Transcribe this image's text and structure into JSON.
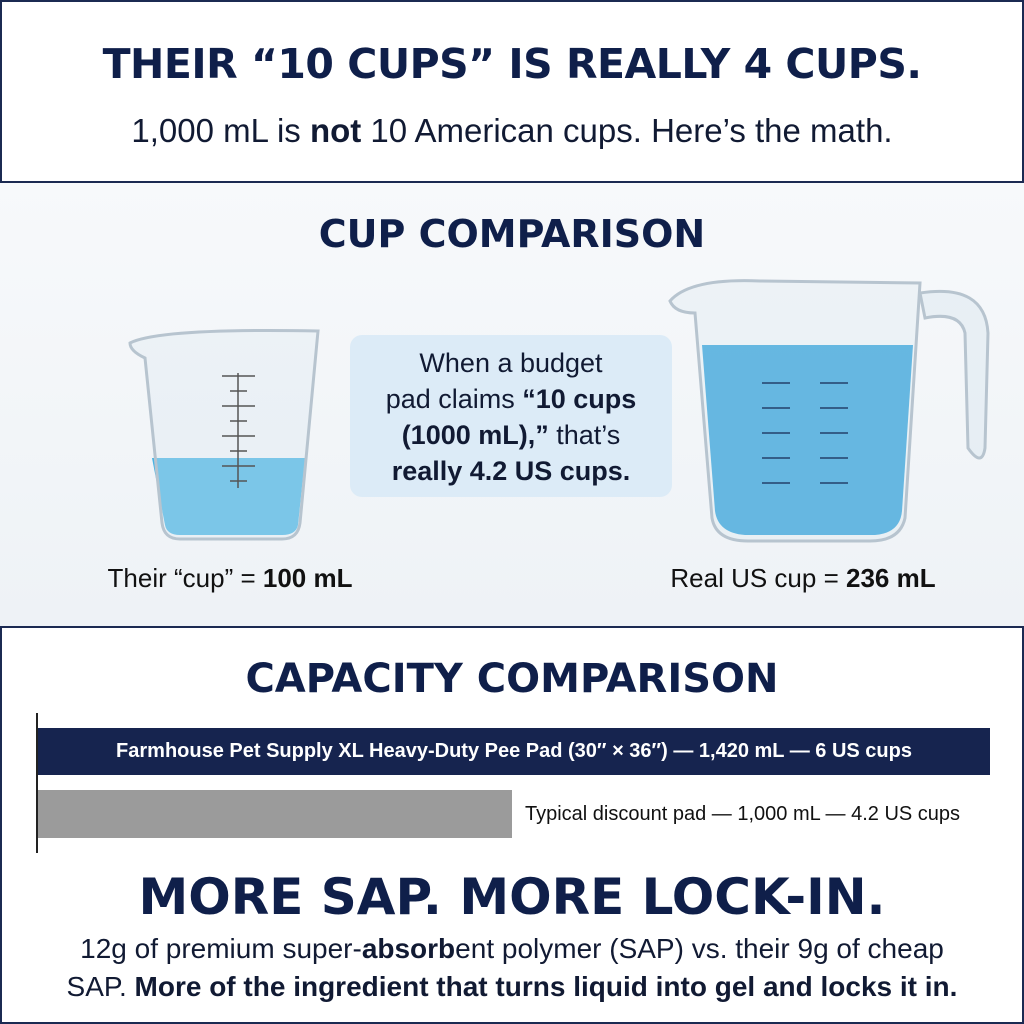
{
  "header": {
    "title": "THEIR “10 CUPS” IS REALLY 4 CUPS.",
    "subtitle": [
      {
        "text": "1,000 mL is "
      },
      {
        "text": "not",
        "bold": true
      },
      {
        "text": " 10 American cups. Here’s the math."
      }
    ]
  },
  "cup_comparison": {
    "title": "CUP COMPARISON",
    "callout": [
      [
        {
          "text": "When a budget"
        }
      ],
      [
        {
          "text": "pad claims "
        },
        {
          "text": "“10 cups",
          "bold": true
        }
      ],
      [
        {
          "text": "(1000 mL),”",
          "bold": true
        },
        {
          "text": " that’s"
        }
      ],
      [
        {
          "text": "really 4.2 US cups.",
          "bold": true
        }
      ]
    ],
    "their_cup": [
      {
        "text": "Their “cup” = "
      },
      {
        "text": "100 mL",
        "bold": true
      }
    ],
    "real_cup": [
      {
        "text": "Real US cup = "
      },
      {
        "text": "236 mL",
        "bold": true
      }
    ]
  },
  "capacity_comparison": {
    "title": "CAPACITY COMPARISON",
    "bars": [
      {
        "label": "Farmhouse Pet Supply XL Heavy-Duty Pee Pad (30″ × 36″) — 1,420 mL — 6 US cups"
      },
      {
        "label": "Typical discount pad — 1,000 mL — 4.2 US cups"
      }
    ]
  },
  "sap": {
    "title": "MORE SAP. MORE LOCK-IN.",
    "body": [
      [
        {
          "text": "12g of premium super-"
        },
        {
          "text": "absorb",
          "bold": true
        },
        {
          "text": "ent polymer (SAP) vs. their 9g of cheap"
        }
      ],
      [
        {
          "text": "SAP. "
        },
        {
          "text": "More of the ingredient that turns liquid into gel and locks it in.",
          "bold": true
        }
      ]
    ]
  }
}
